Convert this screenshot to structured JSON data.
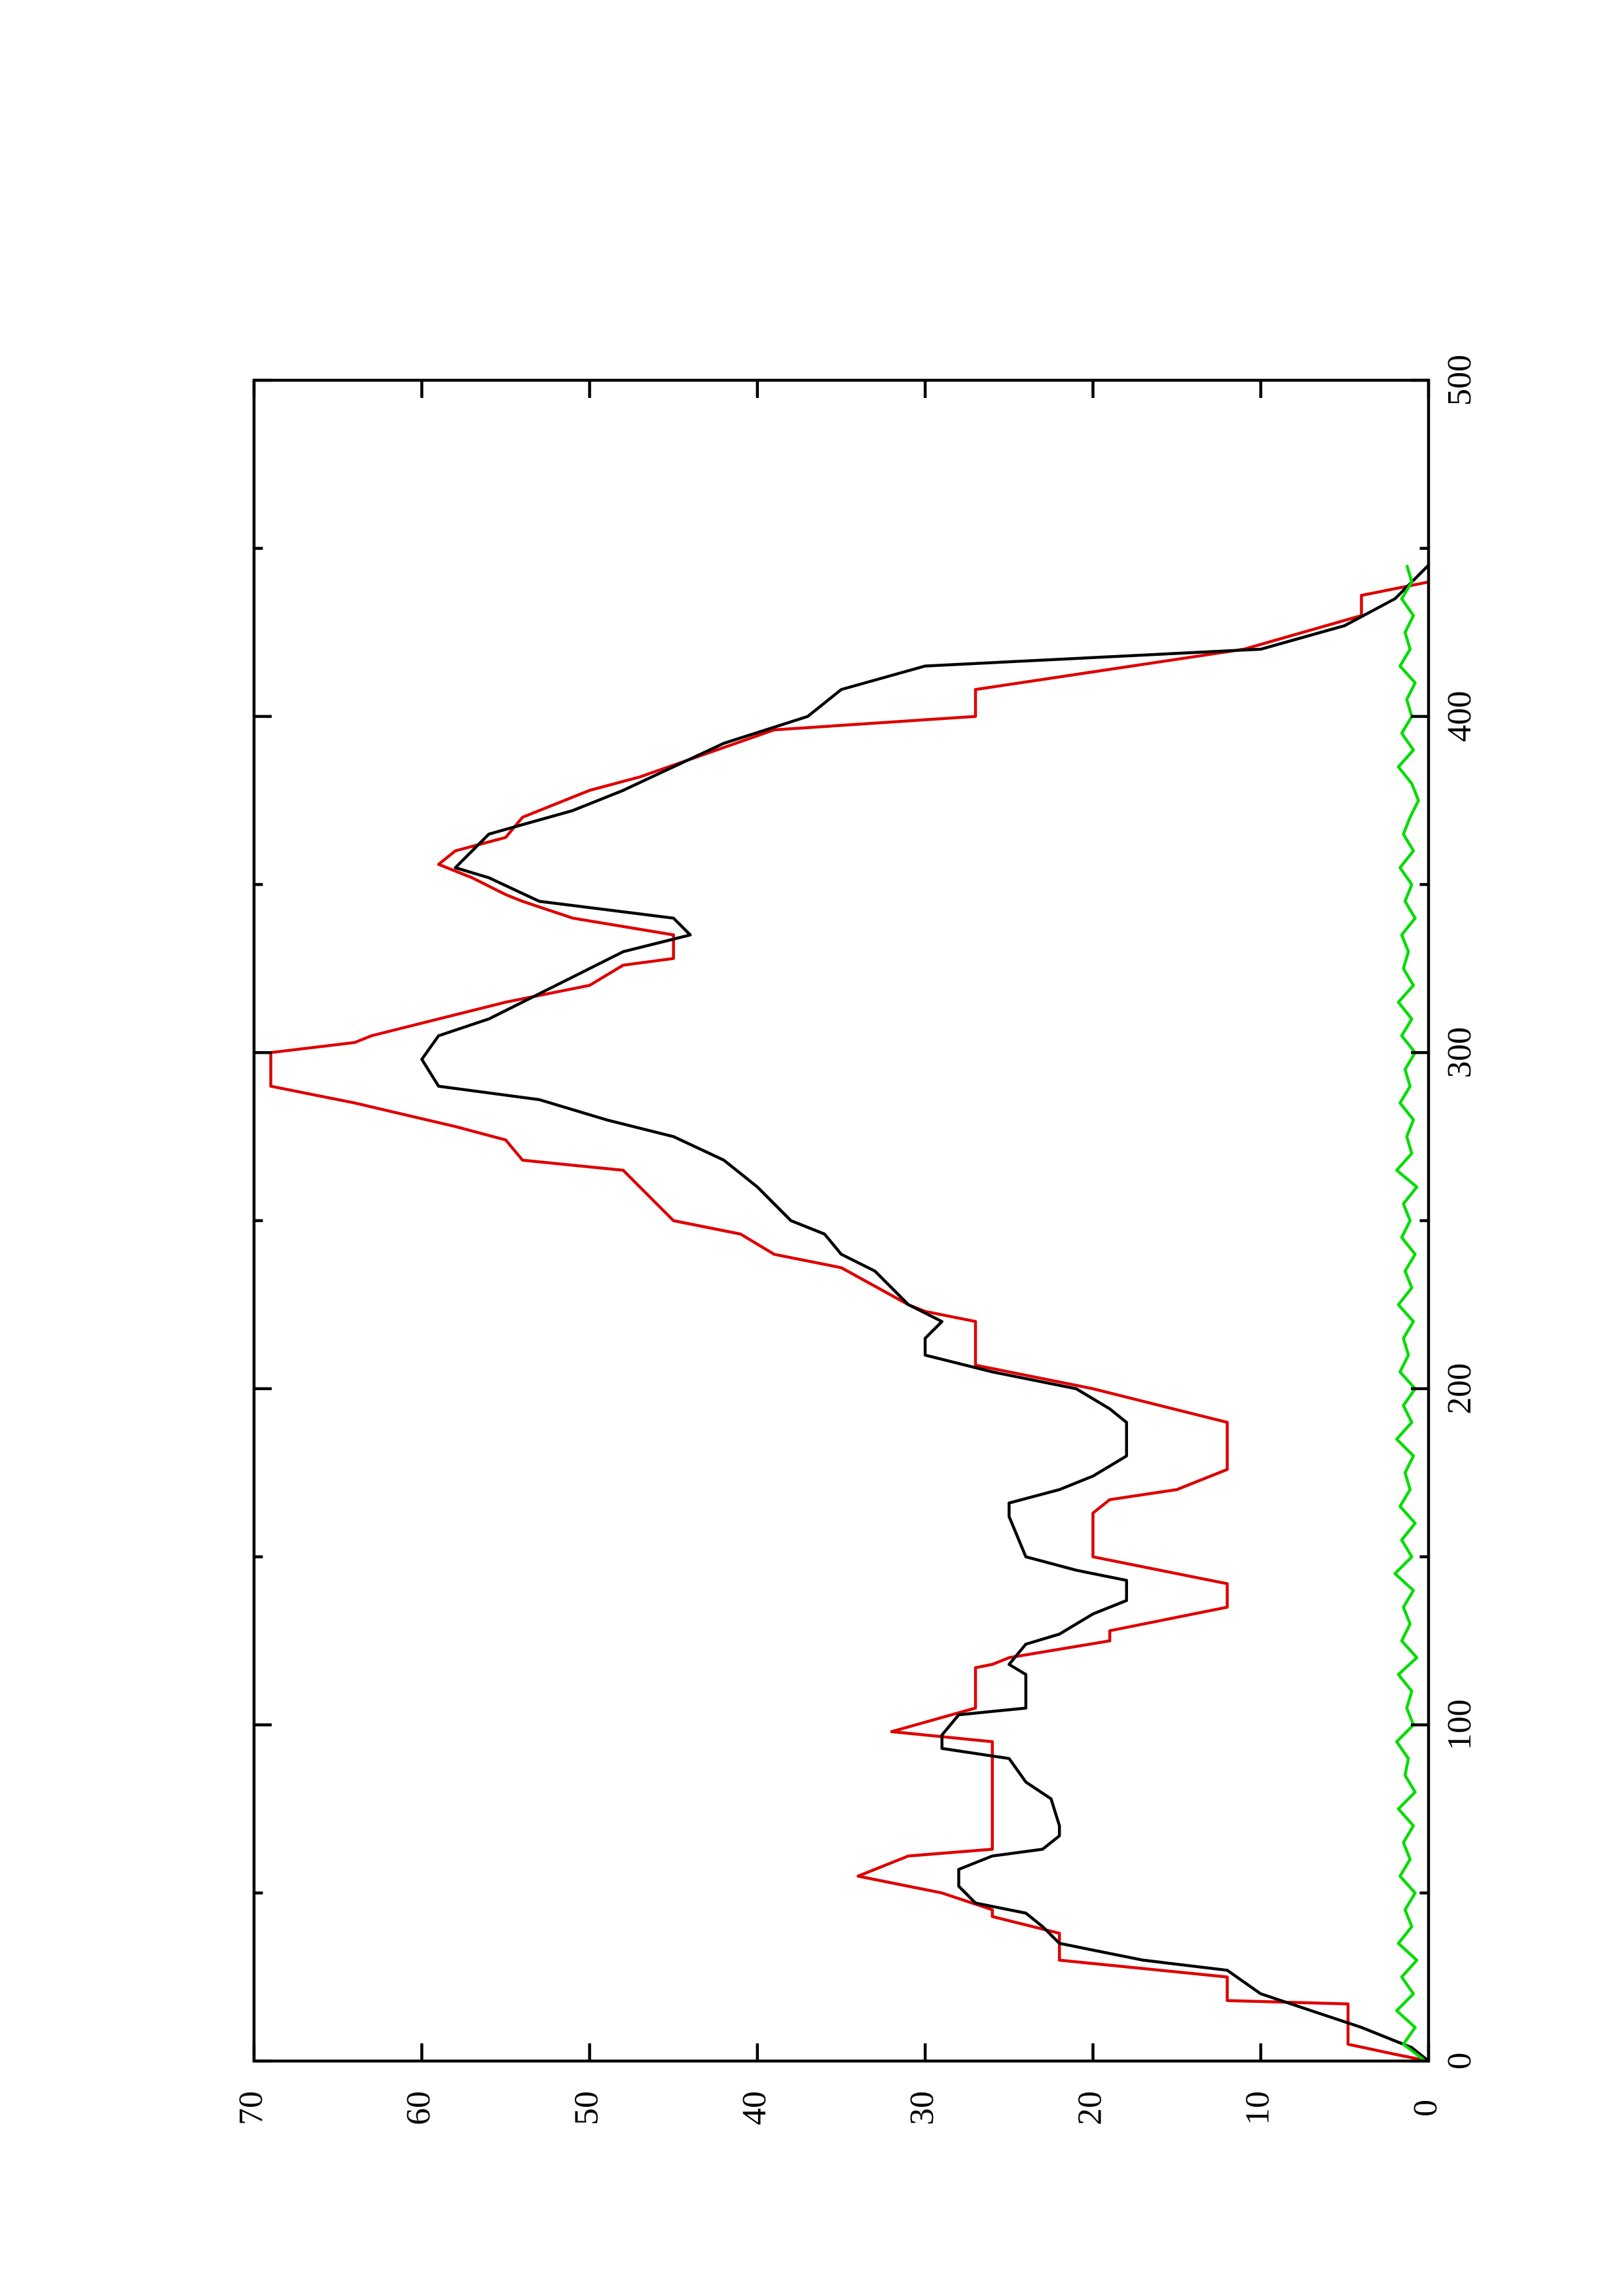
{
  "chart_data": {
    "type": "line",
    "xlim": [
      0,
      500
    ],
    "ylim": [
      0,
      70
    ],
    "xticks": [
      0,
      100,
      200,
      300,
      400,
      500
    ],
    "xminorticks": [
      50,
      150,
      250,
      350,
      450
    ],
    "yticks": [
      0,
      10,
      20,
      30,
      40,
      50,
      60,
      70
    ],
    "series": [
      {
        "color": "#dd0000",
        "x": [
          0,
          2,
          5,
          17,
          18,
          25,
          30,
          38,
          43,
          45,
          50,
          55,
          61,
          63,
          95,
          98,
          105,
          117,
          118,
          120,
          125,
          128,
          135,
          142,
          150,
          163,
          167,
          170,
          176,
          190,
          200,
          207,
          220,
          223,
          225,
          236,
          240,
          246,
          250,
          265,
          268,
          274,
          278,
          285,
          290,
          300,
          303,
          305,
          310,
          315,
          320,
          326,
          328,
          335,
          340,
          345,
          347,
          352,
          356,
          360,
          364,
          370,
          378,
          382,
          396,
          400,
          408,
          420,
          430,
          436,
          440
        ],
        "values": [
          0,
          2,
          4.8,
          4.8,
          12,
          12,
          22,
          22,
          26,
          26,
          29,
          34,
          31,
          26,
          26,
          32,
          27,
          27,
          26,
          25,
          19,
          19,
          12,
          12,
          20,
          20,
          19,
          15,
          12,
          12,
          20,
          27,
          27,
          30,
          31,
          35,
          39,
          41,
          45,
          48,
          54,
          55,
          58,
          64,
          69,
          69,
          64,
          63,
          59,
          55,
          50,
          48,
          45,
          45,
          51,
          54,
          55,
          57,
          59,
          58,
          55,
          54,
          50,
          47,
          39,
          27,
          27,
          11,
          4,
          4,
          0
        ]
      },
      {
        "color": "#000000",
        "x": [
          0,
          4,
          10,
          15,
          20,
          27,
          30,
          35,
          40,
          44,
          47,
          52,
          57,
          61,
          63,
          67,
          70,
          78,
          83,
          90,
          93,
          97,
          103,
          105,
          115,
          118,
          124,
          127,
          133,
          137,
          143,
          146,
          150,
          162,
          166,
          170,
          174,
          177,
          180,
          190,
          194,
          200,
          205,
          210,
          215,
          220,
          225,
          235,
          240,
          246,
          250,
          260,
          268,
          275,
          280,
          286,
          290,
          298,
          305,
          310,
          320,
          325,
          330,
          335,
          340,
          345,
          352,
          355,
          360,
          365,
          372,
          378,
          385,
          392,
          400,
          408,
          415,
          420,
          427,
          435,
          440,
          445
        ],
        "values": [
          0,
          1,
          4,
          7,
          10,
          12,
          17,
          22,
          23,
          24,
          27,
          28,
          28,
          26,
          23,
          22,
          22,
          22.5,
          24,
          25,
          29,
          29,
          28,
          24,
          24,
          25,
          24,
          22,
          20,
          18,
          18,
          21,
          24,
          25,
          25,
          22,
          20,
          19,
          18,
          18,
          19,
          21,
          26,
          30,
          30,
          29,
          31,
          33,
          35,
          36,
          38,
          40,
          42,
          45,
          49,
          53,
          59,
          60,
          59,
          56,
          52,
          50,
          48,
          44,
          45,
          53,
          56,
          58,
          57,
          56,
          51,
          48,
          45,
          42,
          37,
          35,
          30,
          10,
          5,
          2,
          1,
          0
        ]
      },
      {
        "color": "#00dd00",
        "x": [
          0,
          5,
          10,
          15,
          20,
          25,
          30,
          35,
          40,
          45,
          50,
          55,
          60,
          65,
          70,
          75,
          80,
          85,
          90,
          95,
          100,
          105,
          110,
          115,
          120,
          125,
          130,
          135,
          140,
          145,
          150,
          155,
          160,
          165,
          170,
          175,
          180,
          185,
          190,
          195,
          200,
          205,
          210,
          215,
          220,
          225,
          230,
          235,
          240,
          245,
          250,
          255,
          260,
          265,
          270,
          275,
          280,
          285,
          290,
          295,
          300,
          305,
          310,
          315,
          320,
          325,
          330,
          335,
          340,
          345,
          350,
          355,
          360,
          365,
          370,
          375,
          380,
          385,
          390,
          395,
          400,
          405,
          410,
          415,
          420,
          425,
          430,
          435,
          440,
          445
        ],
        "values": [
          0.2,
          1.5,
          0.8,
          1.9,
          0.9,
          1.6,
          0.7,
          1.8,
          1.0,
          1.4,
          0.8,
          1.7,
          1.1,
          1.5,
          0.9,
          1.8,
          0.8,
          1.4,
          1.2,
          1.9,
          0.9,
          1.3,
          1.0,
          1.8,
          0.7,
          1.6,
          1.1,
          1.5,
          0.9,
          2.0,
          1.0,
          1.6,
          0.8,
          1.7,
          1.1,
          1.4,
          0.9,
          1.9,
          1.0,
          1.5,
          0.8,
          1.7,
          1.2,
          1.5,
          0.9,
          1.8,
          1.0,
          1.4,
          0.8,
          1.6,
          1.1,
          1.5,
          0.7,
          1.9,
          1.0,
          1.3,
          0.9,
          1.7,
          1.1,
          1.4,
          0.8,
          1.6,
          1.0,
          1.8,
          0.9,
          1.5,
          1.2,
          1.6,
          0.8,
          1.4,
          1.0,
          1.7,
          0.9,
          1.5,
          1.1,
          0.6,
          1.0,
          1.8,
          0.9,
          1.6,
          1.0,
          1.3,
          0.8,
          1.7,
          1.1,
          1.4,
          0.9,
          1.6,
          1.0,
          1.3
        ]
      }
    ]
  }
}
